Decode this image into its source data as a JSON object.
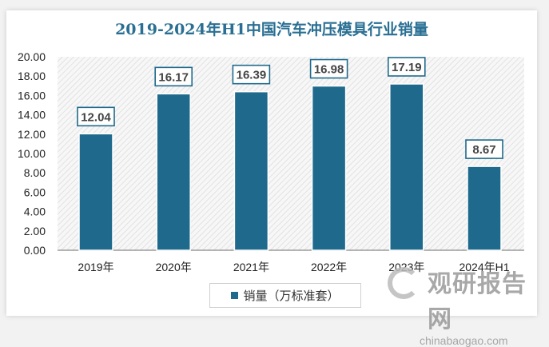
{
  "chart_data": {
    "type": "bar",
    "title": "2019-2024年H1中国汽车冲压模具行业销量",
    "categories": [
      "2019年",
      "2020年",
      "2021年",
      "2022年",
      "2023年",
      "2024年H1"
    ],
    "series": [
      {
        "name": "销量（万标准套）",
        "values": [
          12.04,
          16.17,
          16.39,
          16.98,
          17.19,
          8.67
        ]
      }
    ],
    "data_labels": [
      "12.04",
      "16.17",
      "16.39",
      "16.98",
      "17.19",
      "8.67"
    ],
    "ylim": [
      0,
      20
    ],
    "yticks": [
      "0.00",
      "2.00",
      "4.00",
      "6.00",
      "8.00",
      "10.00",
      "12.00",
      "14.00",
      "16.00",
      "18.00",
      "20.00"
    ],
    "legend": "bottom",
    "grid": false,
    "colors": {
      "bar": "#1f6a8c",
      "title": "#2a6f93"
    }
  },
  "watermark": {
    "cn": "观研报告网",
    "en": "chinabaogao.com"
  }
}
